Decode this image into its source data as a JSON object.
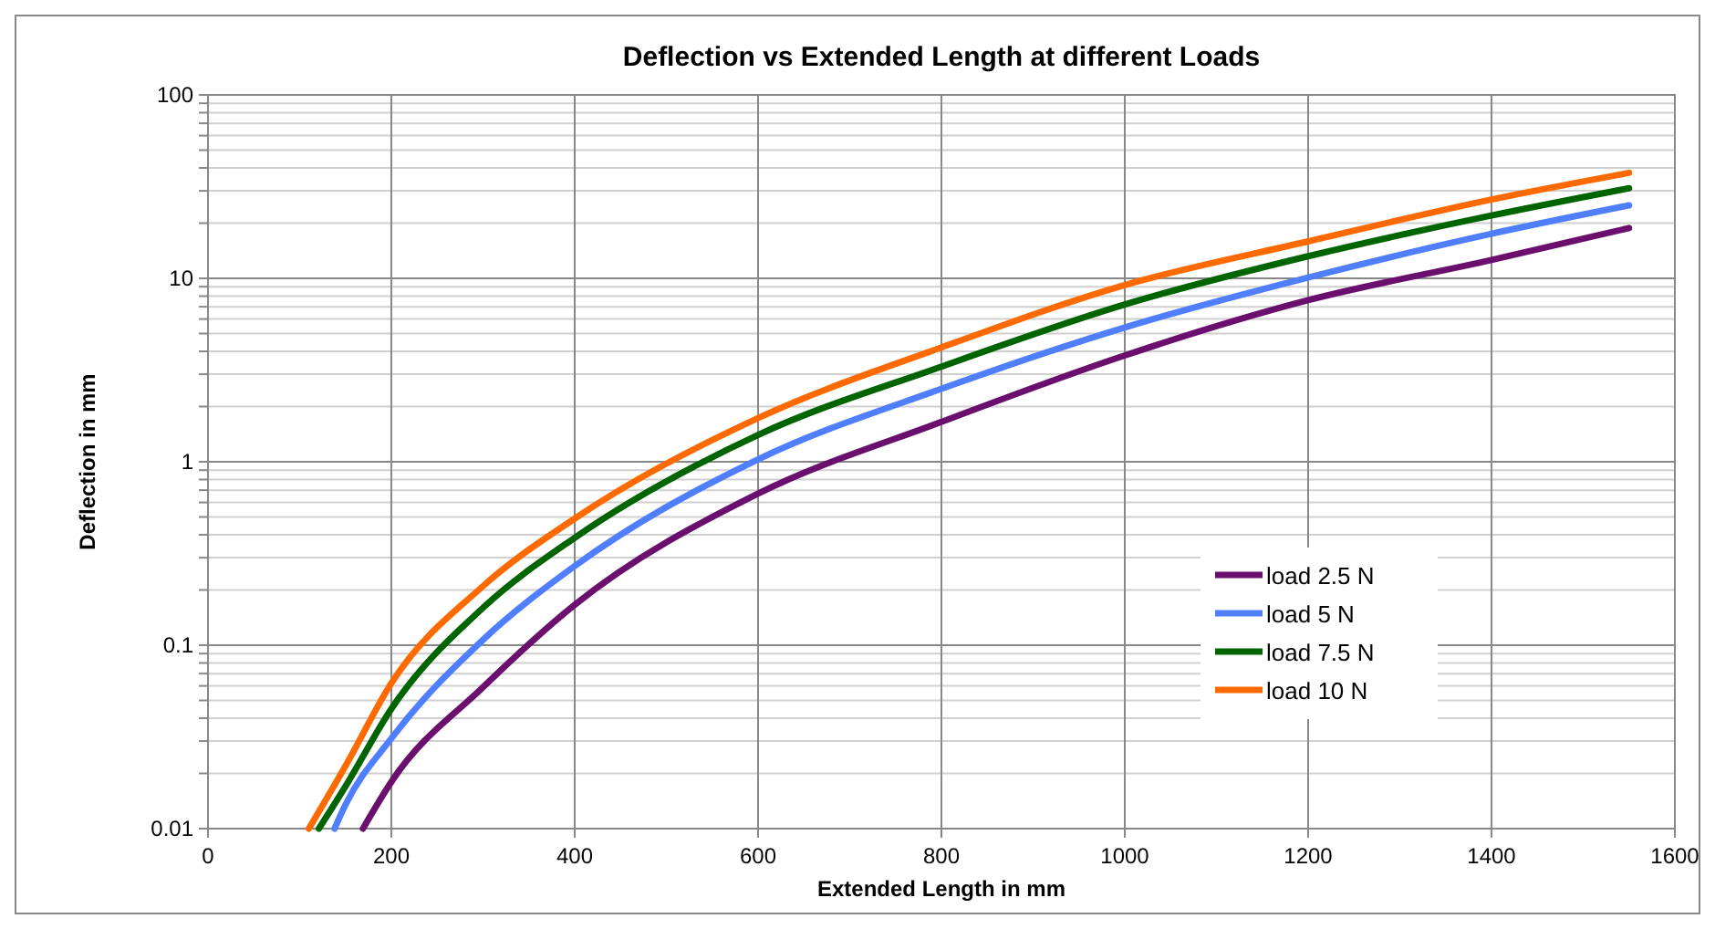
{
  "chart_data": {
    "type": "line",
    "title": "Deflection vs Extended Length at different Loads",
    "xlabel": "Extended Length in mm",
    "ylabel": "Deflection in mm",
    "log": "y",
    "grid": true,
    "legend": "bottom right",
    "line_style": "solid",
    "marker": "none",
    "xlim": [
      0,
      1600
    ],
    "xticks": [
      0,
      200,
      400,
      600,
      800,
      1000,
      1200,
      1400,
      1600
    ],
    "ylim": [
      0.01,
      100
    ],
    "yticks": [
      0.01,
      {
        "value": 0.02,
        "label": null
      },
      {
        "value": 0.03,
        "label": null
      },
      {
        "value": 0.04,
        "label": null
      },
      {
        "value": 0.05,
        "label": null
      },
      {
        "value": 0.06,
        "label": null
      },
      {
        "value": 0.07,
        "label": null
      },
      {
        "value": 0.08,
        "label": null
      },
      {
        "value": 0.09,
        "label": null
      },
      0.1,
      {
        "value": 0.2,
        "label": null
      },
      {
        "value": 0.3,
        "label": null
      },
      {
        "value": 0.4,
        "label": null
      },
      {
        "value": 0.5,
        "label": null
      },
      {
        "value": 0.6,
        "label": null
      },
      {
        "value": 0.7,
        "label": null
      },
      {
        "value": 0.8,
        "label": null
      },
      {
        "value": 0.9,
        "label": null
      },
      1,
      {
        "value": 2,
        "label": null
      },
      {
        "value": 3,
        "label": null
      },
      {
        "value": 4,
        "label": null
      },
      {
        "value": 5,
        "label": null
      },
      {
        "value": 6,
        "label": null
      },
      {
        "value": 7,
        "label": null
      },
      {
        "value": 8,
        "label": null
      },
      {
        "value": 9,
        "label": null
      },
      10,
      {
        "value": 20,
        "label": null
      },
      {
        "value": 30,
        "label": null
      },
      {
        "value": 40,
        "label": null
      },
      {
        "value": 50,
        "label": null
      },
      {
        "value": 60,
        "label": null
      },
      {
        "value": 70,
        "label": null
      },
      {
        "value": 80,
        "label": null
      },
      {
        "value": 90,
        "label": null
      },
      100
    ],
    "series": [
      {
        "name": "load 2.5 N",
        "color": "#6b0f6e",
        "x": [
          169,
          200,
          300,
          400,
          600,
          800,
          1000,
          1200,
          1400,
          1550
        ],
        "values": [
          0.01,
          0.018,
          0.059,
          0.166,
          0.67,
          1.65,
          3.8,
          7.6,
          12.6,
          18.8
        ]
      },
      {
        "name": "load 5 N",
        "color": "#4f7fff",
        "x": [
          138,
          150,
          200,
          300,
          400,
          600,
          800,
          1000,
          1200,
          1400,
          1550
        ],
        "values": [
          0.01,
          0.0135,
          0.031,
          0.107,
          0.27,
          1.03,
          2.5,
          5.4,
          10.1,
          17.5,
          25
        ]
      },
      {
        "name": "load 7.5 N",
        "color": "#006400",
        "x": [
          121,
          150,
          200,
          300,
          400,
          600,
          800,
          1000,
          1200,
          1400,
          1550
        ],
        "values": [
          0.01,
          0.017,
          0.045,
          0.16,
          0.385,
          1.4,
          3.3,
          7.2,
          13.2,
          22,
          31
        ]
      },
      {
        "name": "load 10 N",
        "color": "#ff6a00",
        "x": [
          110,
          150,
          200,
          300,
          400,
          600,
          800,
          1000,
          1200,
          1400,
          1550
        ],
        "values": [
          0.01,
          0.022,
          0.062,
          0.21,
          0.49,
          1.73,
          4.2,
          9.2,
          15.9,
          26.9,
          37.6
        ]
      }
    ]
  }
}
